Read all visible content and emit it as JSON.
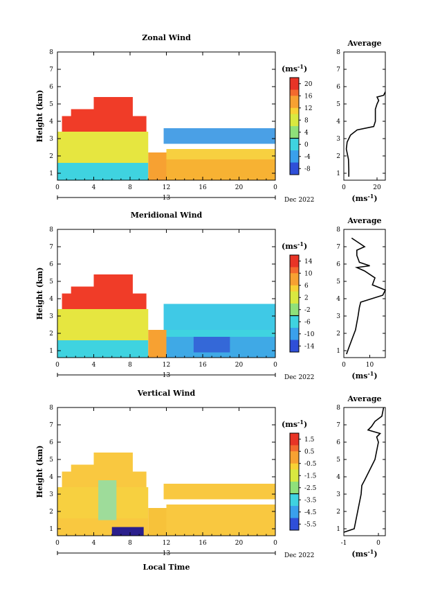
{
  "x_ticks": [
    "0",
    "4",
    "8",
    "12",
    "16",
    "20",
    "0"
  ],
  "y_ticks": [
    "1",
    "2",
    "3",
    "4",
    "5",
    "6",
    "7",
    "8"
  ],
  "date_day": "13",
  "date_label": "Dec 2022",
  "ylabel": "Height (km)",
  "xlabel": "Local Time",
  "unit": "(ms",
  "unit_sup": "-1",
  "unit_close": ")",
  "chart_data": [
    {
      "type": "heatmap",
      "title": "Zonal Wind",
      "ylim": [
        0.6,
        8
      ],
      "xlim": [
        0,
        24
      ],
      "colorbar": {
        "ticks": [
          "20",
          "16",
          "12",
          "8",
          "4",
          "0",
          "-4",
          "-8"
        ],
        "range": [
          -10,
          22
        ]
      },
      "profile": {
        "title": "Average",
        "xticks": [
          "0",
          "20"
        ],
        "xlim": [
          0,
          25
        ],
        "points": [
          [
            3,
            0.8
          ],
          [
            3,
            1.2
          ],
          [
            2.8,
            1.8
          ],
          [
            1.5,
            2.4
          ],
          [
            2,
            2.8
          ],
          [
            4,
            3.2
          ],
          [
            8,
            3.5
          ],
          [
            18,
            3.7
          ],
          [
            19,
            4
          ],
          [
            19,
            4.5
          ],
          [
            19,
            4.7
          ],
          [
            20,
            5
          ],
          [
            21,
            5.2
          ],
          [
            20,
            5.4
          ],
          [
            24,
            5.5
          ],
          [
            25,
            5.7
          ]
        ]
      },
      "colors": {
        "warm": "#f03c28",
        "cool": "#4aa0e6"
      }
    },
    {
      "type": "heatmap",
      "title": "Meridional Wind",
      "ylim": [
        0.6,
        8
      ],
      "xlim": [
        0,
        24
      ],
      "colorbar": {
        "ticks": [
          "14",
          "10",
          "6",
          "2",
          "-2",
          "-6",
          "-10",
          "-14"
        ],
        "range": [
          -16,
          16
        ]
      },
      "profile": {
        "title": "Average",
        "xticks": [
          "0",
          "10"
        ],
        "xlim": [
          0,
          16
        ],
        "points": [
          [
            1,
            0.8
          ],
          [
            2,
            1.2
          ],
          [
            3.5,
            1.8
          ],
          [
            4.5,
            2.2
          ],
          [
            5.5,
            3
          ],
          [
            6,
            3.5
          ],
          [
            6.5,
            3.8
          ],
          [
            15,
            4.2
          ],
          [
            16,
            4.5
          ],
          [
            11,
            4.8
          ],
          [
            12,
            5.2
          ],
          [
            8,
            5.6
          ],
          [
            5,
            5.8
          ],
          [
            10,
            5.9
          ],
          [
            6,
            6.1
          ],
          [
            5,
            6.5
          ],
          [
            5,
            6.8
          ],
          [
            8,
            7.0
          ],
          [
            5,
            7.3
          ],
          [
            3,
            7.5
          ]
        ]
      },
      "colors": {
        "warm": "#f03c28",
        "cool": "#3fc9e6"
      }
    },
    {
      "type": "heatmap",
      "title": "Vertical Wind",
      "ylim": [
        0.6,
        8
      ],
      "xlim": [
        0,
        24
      ],
      "colorbar": {
        "ticks": [
          "1.5",
          "0.5",
          "-0.5",
          "-1.5",
          "-2.5",
          "-3.5",
          "-4.5",
          "-5.5"
        ],
        "range": [
          -6,
          2
        ]
      },
      "profile": {
        "title": "Average",
        "xticks": [
          "-1",
          "0"
        ],
        "xlim": [
          -1,
          0.2
        ],
        "points": [
          [
            -1,
            0.8
          ],
          [
            -0.7,
            1
          ],
          [
            -0.65,
            1.5
          ],
          [
            -0.6,
            2
          ],
          [
            -0.55,
            2.5
          ],
          [
            -0.5,
            3
          ],
          [
            -0.48,
            3.5
          ],
          [
            -0.4,
            3.8
          ],
          [
            -0.3,
            4.2
          ],
          [
            -0.2,
            4.6
          ],
          [
            -0.1,
            5
          ],
          [
            -0.05,
            5.5
          ],
          [
            0,
            6
          ],
          [
            -0.05,
            6.3
          ],
          [
            0.05,
            6.5
          ],
          [
            -0.3,
            6.7
          ],
          [
            -0.2,
            6.9
          ],
          [
            -0.1,
            7.2
          ],
          [
            0.1,
            7.5
          ],
          [
            0.15,
            8
          ]
        ]
      },
      "colors": {
        "warm": "#f7b233",
        "cool": "#8fdc8a"
      }
    }
  ]
}
